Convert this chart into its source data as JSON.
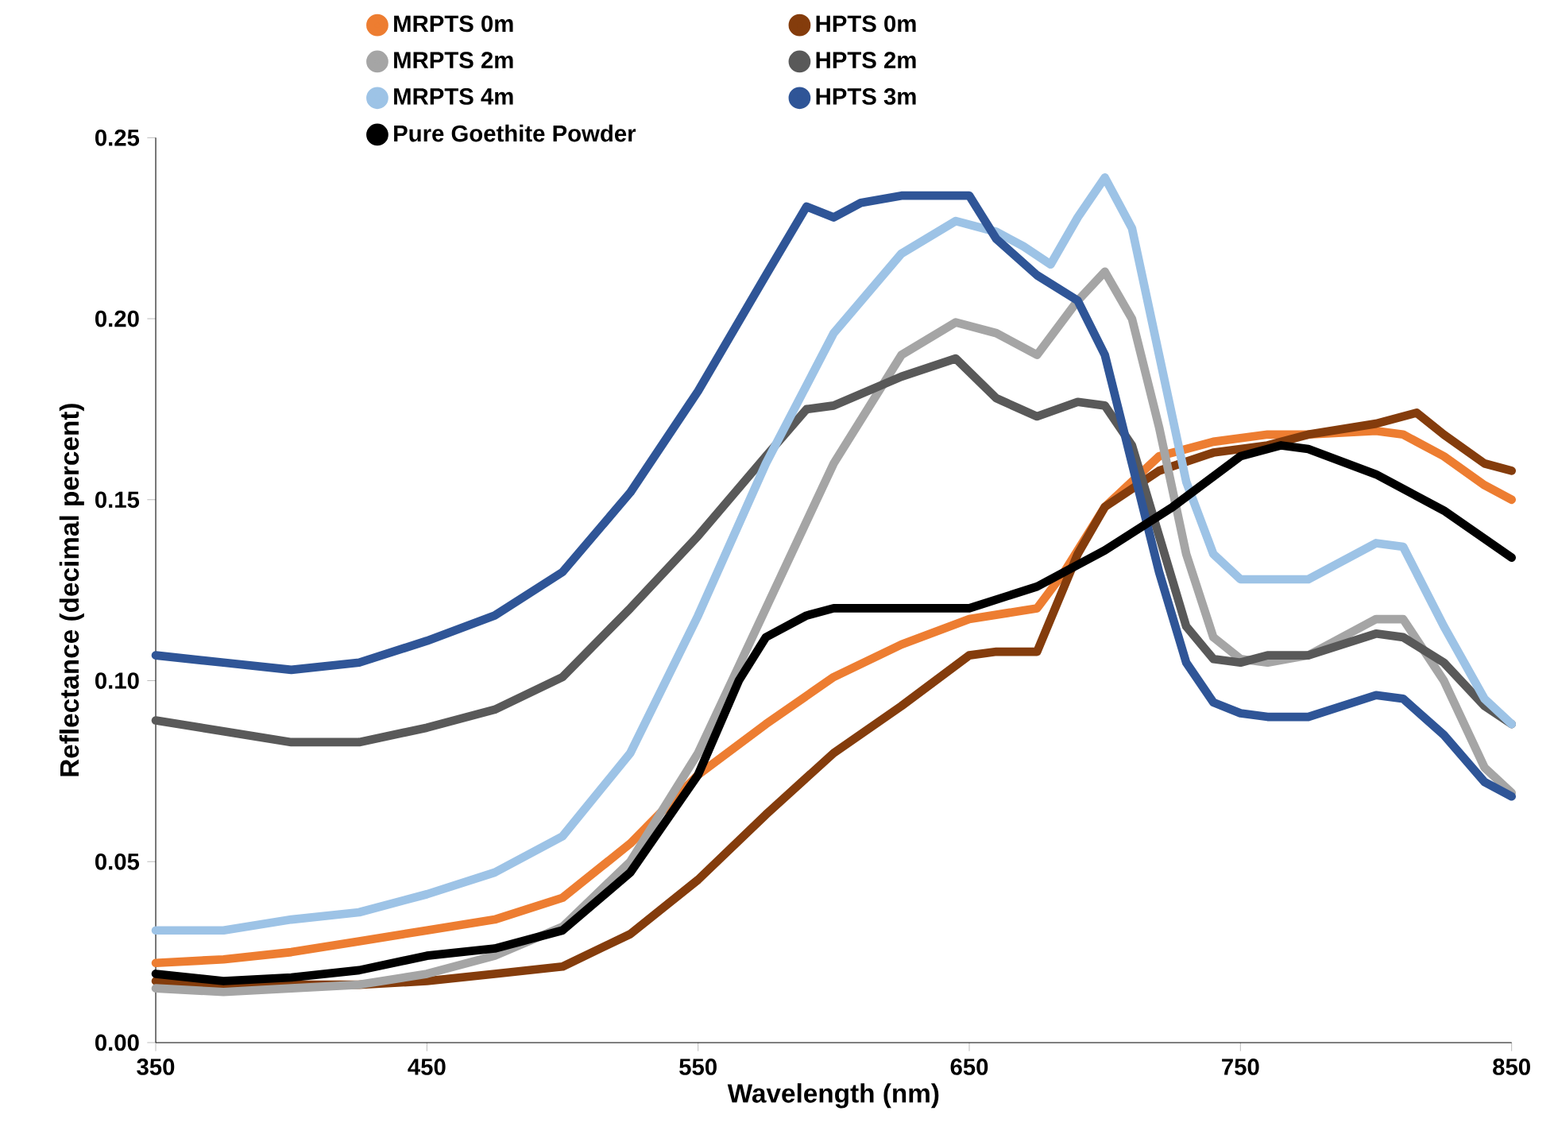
{
  "chart_data": {
    "type": "line",
    "xlabel": "Wavelength (nm)",
    "ylabel": "Reflectance (decimal percent)",
    "xlim": [
      350,
      850
    ],
    "ylim": [
      0,
      0.25
    ],
    "xticks": [
      350,
      450,
      550,
      650,
      750,
      850
    ],
    "yticks": [
      {
        "value": 0,
        "label": "0.00"
      },
      {
        "value": 0.05,
        "label": "0.05"
      },
      {
        "value": 0.1,
        "label": "0.10"
      },
      {
        "value": 0.15,
        "label": "0.15"
      },
      {
        "value": 0.2,
        "label": "0.20"
      },
      {
        "value": 0.25,
        "label": "0.25"
      }
    ],
    "legend": "top",
    "grid": false,
    "marker": "none",
    "line_style": "solid",
    "series": [
      {
        "name": "MRPTS 0m",
        "color": "#ed7d31",
        "x": [
          350,
          375,
          400,
          425,
          450,
          475,
          500,
          525,
          550,
          575,
          600,
          625,
          650,
          675,
          685,
          700,
          720,
          740,
          760,
          775,
          800,
          810,
          825,
          840,
          850
        ],
        "values": [
          0.022,
          0.023,
          0.025,
          0.028,
          0.031,
          0.034,
          0.04,
          0.055,
          0.074,
          0.088,
          0.101,
          0.11,
          0.117,
          0.12,
          0.13,
          0.148,
          0.162,
          0.166,
          0.168,
          0.168,
          0.169,
          0.168,
          0.162,
          0.154,
          0.15
        ]
      },
      {
        "name": "HPTS 0m",
        "color": "#843c0c",
        "x": [
          350,
          375,
          400,
          425,
          450,
          475,
          500,
          525,
          550,
          575,
          600,
          625,
          650,
          660,
          675,
          690,
          700,
          720,
          740,
          760,
          775,
          800,
          815,
          825,
          840,
          850
        ],
        "values": [
          0.017,
          0.016,
          0.016,
          0.016,
          0.017,
          0.019,
          0.021,
          0.03,
          0.045,
          0.063,
          0.08,
          0.093,
          0.107,
          0.108,
          0.108,
          0.135,
          0.148,
          0.158,
          0.163,
          0.165,
          0.168,
          0.171,
          0.174,
          0.168,
          0.16,
          0.158
        ]
      },
      {
        "name": "MRPTS 2m",
        "color": "#a5a5a5",
        "x": [
          350,
          375,
          400,
          425,
          450,
          475,
          500,
          525,
          550,
          575,
          600,
          625,
          645,
          660,
          675,
          690,
          700,
          710,
          720,
          730,
          740,
          750,
          760,
          775,
          800,
          810,
          825,
          840,
          850
        ],
        "values": [
          0.015,
          0.014,
          0.015,
          0.016,
          0.019,
          0.024,
          0.032,
          0.05,
          0.08,
          0.12,
          0.16,
          0.19,
          0.199,
          0.196,
          0.19,
          0.205,
          0.213,
          0.2,
          0.17,
          0.135,
          0.112,
          0.106,
          0.105,
          0.107,
          0.117,
          0.117,
          0.1,
          0.076,
          0.069
        ]
      },
      {
        "name": "HPTS 2m",
        "color": "#595959",
        "x": [
          350,
          375,
          400,
          425,
          450,
          475,
          500,
          525,
          550,
          575,
          590,
          600,
          625,
          645,
          660,
          675,
          690,
          700,
          710,
          720,
          730,
          740,
          750,
          760,
          775,
          800,
          810,
          825,
          840,
          850
        ],
        "values": [
          0.089,
          0.086,
          0.083,
          0.083,
          0.087,
          0.092,
          0.101,
          0.12,
          0.14,
          0.162,
          0.175,
          0.176,
          0.184,
          0.189,
          0.178,
          0.173,
          0.177,
          0.176,
          0.165,
          0.14,
          0.115,
          0.106,
          0.105,
          0.107,
          0.107,
          0.113,
          0.112,
          0.105,
          0.093,
          0.088
        ]
      },
      {
        "name": "MRPTS 4m",
        "color": "#9dc3e6",
        "x": [
          350,
          375,
          400,
          425,
          450,
          475,
          500,
          525,
          550,
          575,
          600,
          625,
          645,
          660,
          670,
          680,
          690,
          700,
          710,
          720,
          730,
          740,
          750,
          760,
          775,
          800,
          810,
          825,
          840,
          850
        ],
        "values": [
          0.031,
          0.031,
          0.034,
          0.036,
          0.041,
          0.047,
          0.057,
          0.08,
          0.118,
          0.16,
          0.196,
          0.218,
          0.227,
          0.224,
          0.22,
          0.215,
          0.228,
          0.239,
          0.225,
          0.19,
          0.155,
          0.135,
          0.128,
          0.128,
          0.128,
          0.138,
          0.137,
          0.115,
          0.095,
          0.088
        ]
      },
      {
        "name": "HPTS 3m",
        "color": "#2f5597",
        "x": [
          350,
          375,
          400,
          425,
          450,
          475,
          500,
          525,
          550,
          575,
          590,
          600,
          610,
          625,
          650,
          660,
          675,
          690,
          700,
          710,
          720,
          730,
          740,
          750,
          760,
          775,
          800,
          810,
          825,
          840,
          850
        ],
        "values": [
          0.107,
          0.105,
          0.103,
          0.105,
          0.111,
          0.118,
          0.13,
          0.152,
          0.18,
          0.212,
          0.231,
          0.228,
          0.232,
          0.234,
          0.234,
          0.222,
          0.212,
          0.205,
          0.19,
          0.16,
          0.13,
          0.105,
          0.094,
          0.091,
          0.09,
          0.09,
          0.096,
          0.095,
          0.085,
          0.072,
          0.068
        ]
      },
      {
        "name": "Pure Goethite Powder",
        "color": "#000000",
        "x": [
          350,
          375,
          400,
          425,
          450,
          475,
          500,
          525,
          550,
          565,
          575,
          590,
          600,
          625,
          650,
          675,
          700,
          725,
          750,
          765,
          775,
          800,
          825,
          850
        ],
        "values": [
          0.019,
          0.017,
          0.018,
          0.02,
          0.024,
          0.026,
          0.031,
          0.047,
          0.074,
          0.1,
          0.112,
          0.118,
          0.12,
          0.12,
          0.12,
          0.126,
          0.136,
          0.148,
          0.162,
          0.165,
          0.164,
          0.157,
          0.147,
          0.134
        ]
      }
    ]
  }
}
